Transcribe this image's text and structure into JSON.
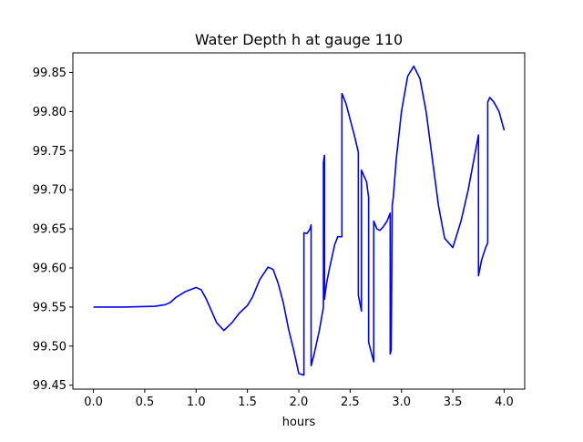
{
  "chart_data": {
    "type": "line",
    "title": "Water Depth h at gauge 110",
    "xlabel": "hours",
    "ylabel": "",
    "xlim": [
      -0.2,
      4.2
    ],
    "ylim": [
      99.445,
      99.875
    ],
    "xticks": [
      0.0,
      0.5,
      1.0,
      1.5,
      2.0,
      2.5,
      3.0,
      3.5,
      4.0
    ],
    "xtick_labels": [
      "0.0",
      "0.5",
      "1.0",
      "1.5",
      "2.0",
      "2.5",
      "3.0",
      "3.5",
      "4.0"
    ],
    "yticks": [
      99.45,
      99.5,
      99.55,
      99.6,
      99.65,
      99.7,
      99.75,
      99.8,
      99.85
    ],
    "ytick_labels": [
      "99.45",
      "99.50",
      "99.55",
      "99.60",
      "99.65",
      "99.70",
      "99.75",
      "99.80",
      "99.85"
    ],
    "grid": false,
    "legend": "none",
    "series": [
      {
        "color": "#0000ff",
        "x": [
          0.0,
          0.3,
          0.6,
          0.7,
          0.75,
          0.8,
          0.9,
          1.0,
          1.05,
          1.1,
          1.2,
          1.27,
          1.35,
          1.42,
          1.5,
          1.55,
          1.62,
          1.7,
          1.75,
          1.8,
          1.85,
          1.9,
          1.95,
          2.0,
          2.05,
          2.05,
          2.08,
          2.11,
          2.12,
          2.12,
          2.15,
          2.2,
          2.24,
          2.24,
          2.25,
          2.25,
          2.27,
          2.3,
          2.35,
          2.38,
          2.42,
          2.42,
          2.43,
          2.46,
          2.5,
          2.54,
          2.58,
          2.58,
          2.61,
          2.61,
          2.66,
          2.68,
          2.68,
          2.73,
          2.73,
          2.76,
          2.79,
          2.82,
          2.86,
          2.89,
          2.89,
          2.9,
          2.91,
          2.92,
          2.95,
          3.0,
          3.06,
          3.12,
          3.18,
          3.24,
          3.3,
          3.36,
          3.42,
          3.5,
          3.58,
          3.65,
          3.75,
          3.75,
          3.78,
          3.82,
          3.84,
          3.84,
          3.86,
          3.9,
          3.95,
          4.0
        ],
        "y": [
          99.55,
          99.55,
          99.551,
          99.553,
          99.556,
          99.562,
          99.57,
          99.575,
          99.572,
          99.56,
          99.53,
          99.52,
          99.53,
          99.542,
          99.552,
          99.563,
          99.585,
          99.601,
          99.598,
          99.58,
          99.555,
          99.522,
          99.495,
          99.465,
          99.463,
          99.645,
          99.644,
          99.65,
          99.655,
          99.475,
          99.49,
          99.52,
          99.55,
          99.735,
          99.744,
          99.56,
          99.58,
          99.6,
          99.63,
          99.64,
          99.64,
          99.823,
          99.82,
          99.81,
          99.79,
          99.77,
          99.748,
          99.565,
          99.545,
          99.725,
          99.71,
          99.69,
          99.505,
          99.48,
          99.66,
          99.65,
          99.648,
          99.652,
          99.66,
          99.67,
          99.49,
          99.495,
          99.68,
          99.69,
          99.74,
          99.8,
          99.845,
          99.858,
          99.842,
          99.8,
          99.74,
          99.68,
          99.638,
          99.626,
          99.66,
          99.7,
          99.77,
          99.59,
          99.61,
          99.626,
          99.632,
          99.812,
          99.818,
          99.812,
          99.8,
          99.776
        ]
      }
    ]
  }
}
